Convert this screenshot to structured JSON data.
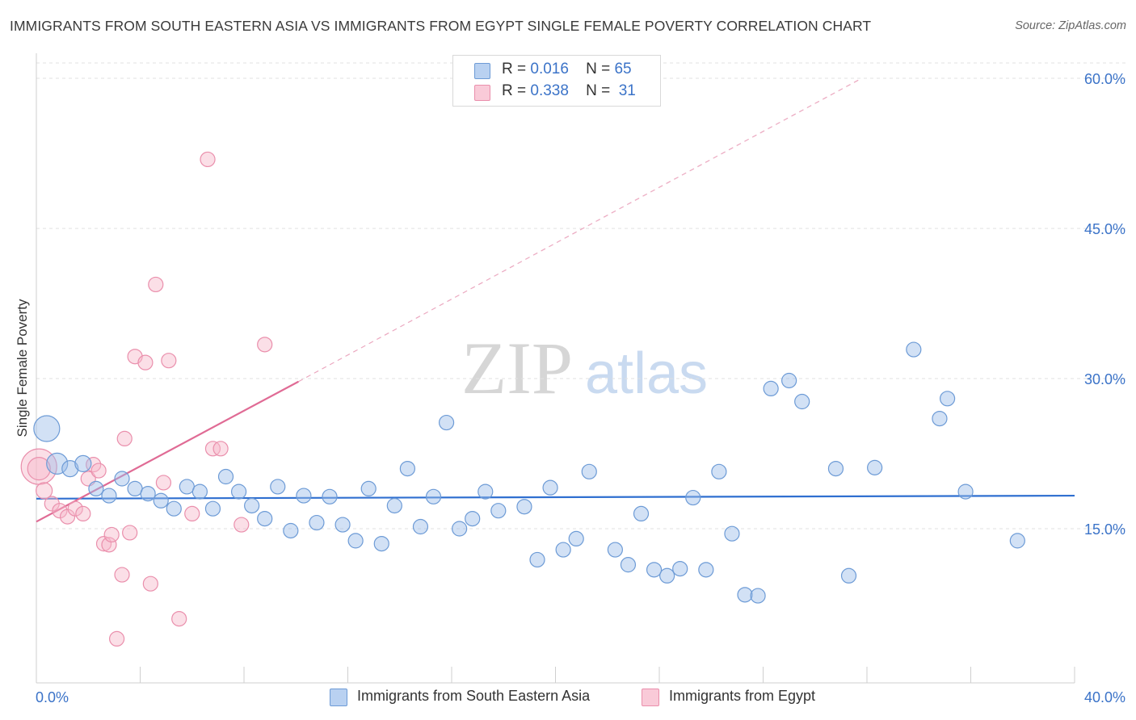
{
  "title": "IMMIGRANTS FROM SOUTH EASTERN ASIA VS IMMIGRANTS FROM EGYPT SINGLE FEMALE POVERTY CORRELATION CHART",
  "source": "Source: ZipAtlas.com",
  "watermark": {
    "zip": "ZIP",
    "atlas": "atlas"
  },
  "legend": {
    "row1": {
      "r_label": "R =",
      "r_value": "0.016",
      "n_label": "N =",
      "n_value": "65"
    },
    "row2": {
      "r_label": "R =",
      "r_value": "0.338",
      "n_label": "N =",
      "n_value": "31"
    }
  },
  "chart_data": {
    "type": "scatter",
    "ylabel": "Single Female Poverty",
    "x_tick_labels": [
      "0.0%",
      "40.0%"
    ],
    "y_tick_labels": [
      "15.0%",
      "30.0%",
      "45.0%",
      "60.0%"
    ],
    "xlim": [
      0,
      40
    ],
    "ylim": [
      0,
      63
    ],
    "y_ticks": [
      15,
      30,
      45,
      60
    ],
    "grid": "horizontal dashed",
    "legend_position": "top-center",
    "series": [
      {
        "name": "Immigrants from South Eastern Asia",
        "color": "#9bbde8",
        "stroke": "#6d9bd6",
        "R": 0.016,
        "N": 65,
        "trend": {
          "x": [
            0,
            40
          ],
          "y": [
            18.0,
            18.3
          ],
          "color": "#2f6fd0"
        },
        "points": [
          [
            0.4,
            25.0,
            16
          ],
          [
            0.8,
            21.5,
            13
          ],
          [
            1.3,
            21.0,
            10
          ],
          [
            1.8,
            21.5,
            10
          ],
          [
            2.3,
            19.0,
            9
          ],
          [
            2.8,
            18.3,
            9
          ],
          [
            3.3,
            20.0,
            9
          ],
          [
            3.8,
            19.0,
            9
          ],
          [
            4.3,
            18.5,
            9
          ],
          [
            4.8,
            17.8,
            9
          ],
          [
            5.3,
            17.0,
            9
          ],
          [
            5.8,
            19.2,
            9
          ],
          [
            6.3,
            18.7,
            9
          ],
          [
            6.8,
            17.0,
            9
          ],
          [
            7.3,
            20.2,
            9
          ],
          [
            7.8,
            18.7,
            9
          ],
          [
            8.3,
            17.3,
            9
          ],
          [
            8.8,
            16.0,
            9
          ],
          [
            9.3,
            19.2,
            9
          ],
          [
            9.8,
            14.8,
            9
          ],
          [
            10.3,
            18.3,
            9
          ],
          [
            10.8,
            15.6,
            9
          ],
          [
            11.3,
            18.2,
            9
          ],
          [
            11.8,
            15.4,
            9
          ],
          [
            12.3,
            13.8,
            9
          ],
          [
            12.8,
            19.0,
            9
          ],
          [
            13.3,
            13.5,
            9
          ],
          [
            13.8,
            17.3,
            9
          ],
          [
            14.3,
            21.0,
            9
          ],
          [
            14.8,
            15.2,
            9
          ],
          [
            15.3,
            18.2,
            9
          ],
          [
            15.8,
            25.6,
            9
          ],
          [
            16.3,
            15.0,
            9
          ],
          [
            16.8,
            16.0,
            9
          ],
          [
            17.3,
            18.7,
            9
          ],
          [
            17.8,
            16.8,
            9
          ],
          [
            18.8,
            17.2,
            9
          ],
          [
            19.3,
            11.9,
            9
          ],
          [
            19.8,
            19.1,
            9
          ],
          [
            20.3,
            12.9,
            9
          ],
          [
            20.8,
            14.0,
            9
          ],
          [
            21.3,
            20.7,
            9
          ],
          [
            22.3,
            12.9,
            9
          ],
          [
            22.8,
            11.4,
            9
          ],
          [
            23.3,
            16.5,
            9
          ],
          [
            23.8,
            10.9,
            9
          ],
          [
            24.3,
            10.3,
            9
          ],
          [
            24.8,
            11.0,
            9
          ],
          [
            25.3,
            18.1,
            9
          ],
          [
            25.8,
            10.9,
            9
          ],
          [
            26.3,
            20.7,
            9
          ],
          [
            26.8,
            14.5,
            9
          ],
          [
            27.3,
            8.4,
            9
          ],
          [
            27.8,
            8.3,
            9
          ],
          [
            28.3,
            29.0,
            9
          ],
          [
            29.0,
            29.8,
            9
          ],
          [
            29.5,
            27.7,
            9
          ],
          [
            30.8,
            21.0,
            9
          ],
          [
            31.3,
            10.3,
            9
          ],
          [
            32.3,
            21.1,
            9
          ],
          [
            33.8,
            32.9,
            9
          ],
          [
            34.8,
            26.0,
            9
          ],
          [
            35.1,
            28.0,
            9
          ],
          [
            35.8,
            18.7,
            9
          ],
          [
            37.8,
            13.8,
            9
          ]
        ]
      },
      {
        "name": "Immigrants from Egypt",
        "color": "#f6b7c9",
        "stroke": "#ea8fac",
        "R": 0.338,
        "N": 31,
        "trend": {
          "x": [
            0,
            10.1
          ],
          "y": [
            15.7,
            29.7
          ],
          "color": "#e06b95",
          "dashed_x": [
            10.1,
            31.8
          ],
          "dashed_y": [
            29.7,
            60.0
          ]
        },
        "points": [
          [
            0.1,
            21.2,
            22
          ],
          [
            0.3,
            18.8,
            10
          ],
          [
            0.6,
            17.5,
            9
          ],
          [
            0.9,
            16.8,
            9
          ],
          [
            1.2,
            16.2,
            9
          ],
          [
            1.5,
            17.0,
            9
          ],
          [
            1.8,
            16.5,
            9
          ],
          [
            2.0,
            20.0,
            9
          ],
          [
            2.2,
            21.4,
            9
          ],
          [
            2.4,
            20.8,
            9
          ],
          [
            2.6,
            13.5,
            9
          ],
          [
            2.8,
            13.4,
            9
          ],
          [
            2.9,
            14.4,
            9
          ],
          [
            3.1,
            4.0,
            9
          ],
          [
            3.3,
            10.4,
            9
          ],
          [
            3.4,
            24.0,
            9
          ],
          [
            3.6,
            14.6,
            9
          ],
          [
            3.8,
            32.2,
            9
          ],
          [
            4.2,
            31.6,
            9
          ],
          [
            4.4,
            9.5,
            9
          ],
          [
            4.6,
            39.4,
            9
          ],
          [
            4.9,
            19.6,
            9
          ],
          [
            5.1,
            31.8,
            9
          ],
          [
            5.5,
            6.0,
            9
          ],
          [
            6.0,
            16.5,
            9
          ],
          [
            6.6,
            51.9,
            9
          ],
          [
            6.8,
            23.0,
            9
          ],
          [
            7.1,
            23.0,
            9
          ],
          [
            7.9,
            15.4,
            9
          ],
          [
            8.8,
            33.4,
            9
          ],
          [
            0.1,
            21.0,
            14
          ]
        ]
      }
    ]
  }
}
